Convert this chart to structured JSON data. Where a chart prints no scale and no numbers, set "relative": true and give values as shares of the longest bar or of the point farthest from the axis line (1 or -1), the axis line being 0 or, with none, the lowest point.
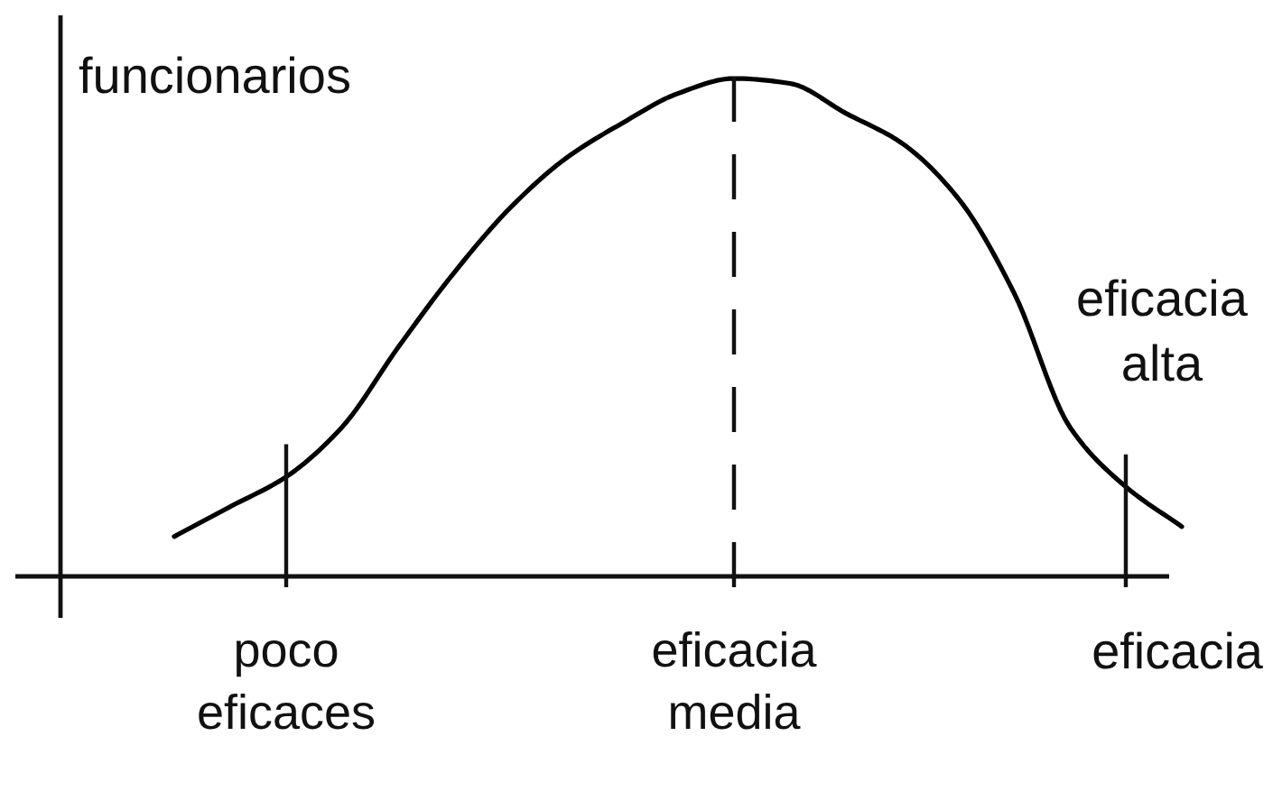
{
  "chart_data": {
    "type": "line",
    "ylabel": "funcionarios",
    "xlabel": "eficacia",
    "relative": true,
    "tick_labels": "x",
    "categories": [
      null,
      null,
      "poco eficaces",
      null,
      null,
      null,
      null,
      null,
      null,
      null,
      "eficacia media",
      null,
      null,
      null,
      null,
      null,
      null,
      null,
      null
    ],
    "series": [
      {
        "color": "#000000",
        "values": [
          0.08,
          0.14,
          0.2,
          0.3,
          0.46,
          0.61,
          0.74,
          0.84,
          0.91,
          0.97,
          1.0,
          0.99,
          0.93,
          0.87,
          0.76,
          0.57,
          0.3,
          0.18,
          0.1
        ]
      }
    ],
    "ref_lines": [
      {
        "axis": "x",
        "value": "poco eficaces"
      },
      {
        "axis": "x",
        "value": "eficacia media",
        "line_style": "dashed"
      }
    ],
    "annotations": [
      "eficacia alta"
    ]
  }
}
